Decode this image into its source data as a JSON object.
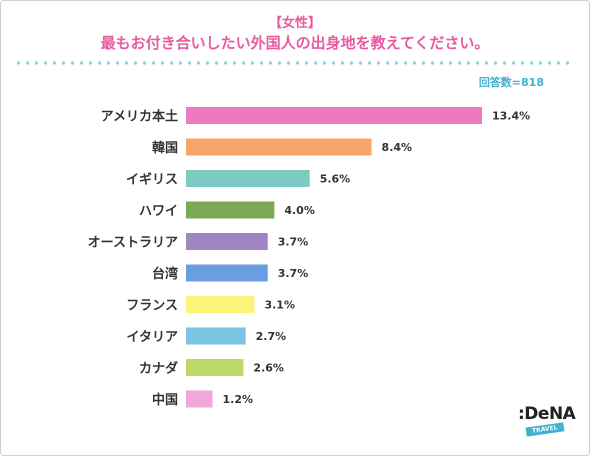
{
  "header": {
    "subtitle": "【女性】",
    "title": "最もお付き合いしたい外国人の出身地を教えてください。"
  },
  "respondents": "回答数=818",
  "logo": {
    "main": ":DeNA",
    "sub": "TRAVEL"
  },
  "chart_data": {
    "type": "bar",
    "orientation": "horizontal",
    "title": "最もお付き合いしたい外国人の出身地を教えてください。",
    "xlabel": "",
    "ylabel": "",
    "xlim": [
      0,
      13.4
    ],
    "grid": false,
    "categories": [
      "アメリカ本土",
      "韓国",
      "イギリス",
      "ハワイ",
      "オーストラリア",
      "台湾",
      "フランス",
      "イタリア",
      "カナダ",
      "中国"
    ],
    "values": [
      13.4,
      8.4,
      5.6,
      4.0,
      3.7,
      3.7,
      3.1,
      2.7,
      2.6,
      1.2
    ],
    "value_labels": [
      "13.4%",
      "8.4%",
      "5.6%",
      "4.0%",
      "3.7%",
      "3.7%",
      "3.1%",
      "2.7%",
      "2.6%",
      "1.2%"
    ],
    "colors": [
      "#ec7bbd",
      "#f8a46b",
      "#7ccac2",
      "#7aaa55",
      "#a084c4",
      "#6a9ee0",
      "#fbf37a",
      "#79c5e3",
      "#bdd965",
      "#f0a8d8"
    ]
  }
}
